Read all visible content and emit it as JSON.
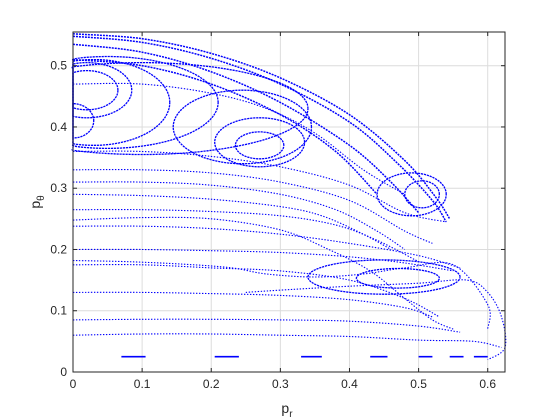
{
  "chart_data": {
    "type": "scatter",
    "title": "",
    "xlabel": {
      "base": "p",
      "sub": "r"
    },
    "ylabel": {
      "base": "p",
      "sub": "θ"
    },
    "xlim": [
      0,
      0.625
    ],
    "ylim": [
      0,
      0.555
    ],
    "xticks": [
      "0",
      "0.1",
      "0.2",
      "0.3",
      "0.4",
      "0.5",
      "0.6"
    ],
    "yticks": [
      "0",
      "0.1",
      "0.2",
      "0.3",
      "0.4",
      "0.5"
    ],
    "grid": true,
    "marker_color": "#0000ff",
    "series": [
      {
        "shape": "envelope",
        "points": [
          [
            0,
            0.552
          ],
          [
            0.1,
            0.544
          ],
          [
            0.2,
            0.52
          ],
          [
            0.3,
            0.48
          ],
          [
            0.4,
            0.42
          ],
          [
            0.48,
            0.345
          ],
          [
            0.525,
            0.285
          ],
          [
            0.545,
            0.25
          ]
        ]
      },
      {
        "shape": "envelope",
        "points": [
          [
            0,
            0.548
          ],
          [
            0.1,
            0.538
          ],
          [
            0.2,
            0.512
          ],
          [
            0.3,
            0.47
          ],
          [
            0.4,
            0.408
          ],
          [
            0.47,
            0.34
          ],
          [
            0.52,
            0.28
          ],
          [
            0.54,
            0.245
          ]
        ]
      },
      {
        "shape": "envelope",
        "points": [
          [
            0,
            0.535
          ],
          [
            0.1,
            0.522
          ],
          [
            0.2,
            0.49
          ],
          [
            0.3,
            0.44
          ],
          [
            0.4,
            0.37
          ],
          [
            0.46,
            0.31
          ],
          [
            0.5,
            0.26
          ]
        ]
      },
      {
        "shape": "envelope",
        "points": [
          [
            0,
            0.51
          ],
          [
            0.1,
            0.5
          ],
          [
            0.2,
            0.47
          ],
          [
            0.3,
            0.42
          ],
          [
            0.38,
            0.36
          ],
          [
            0.44,
            0.29
          ]
        ]
      },
      {
        "shape": "loop",
        "center": [
          0.02,
          0.46
        ],
        "radius": [
          0.045,
          0.032
        ]
      },
      {
        "shape": "loop",
        "center": [
          0.02,
          0.46
        ],
        "radius": [
          0.065,
          0.045
        ]
      },
      {
        "shape": "loop",
        "center": [
          0.0,
          0.41
        ],
        "radius": [
          0.03,
          0.028
        ]
      },
      {
        "shape": "loop",
        "center": [
          0.03,
          0.44
        ],
        "radius": [
          0.11,
          0.07
        ]
      },
      {
        "shape": "loop",
        "center": [
          0.05,
          0.44
        ],
        "radius": [
          0.16,
          0.075
        ]
      },
      {
        "shape": "loop",
        "center": [
          0.1,
          0.43
        ],
        "radius": [
          0.24,
          0.075
        ]
      },
      {
        "shape": "loop",
        "center": [
          0.27,
          0.37
        ],
        "radius": [
          0.035,
          0.022
        ]
      },
      {
        "shape": "loop",
        "center": [
          0.27,
          0.375
        ],
        "radius": [
          0.065,
          0.04
        ]
      },
      {
        "shape": "loop",
        "center": [
          0.245,
          0.4
        ],
        "radius": [
          0.1,
          0.06
        ]
      },
      {
        "shape": "loop",
        "center": [
          0.505,
          0.29
        ],
        "radius": [
          0.025,
          0.022
        ]
      },
      {
        "shape": "loop",
        "center": [
          0.49,
          0.29
        ],
        "radius": [
          0.05,
          0.035
        ]
      },
      {
        "shape": "loop",
        "center": [
          0.47,
          0.153
        ],
        "radius": [
          0.06,
          0.016
        ]
      },
      {
        "shape": "loop",
        "center": [
          0.45,
          0.155
        ],
        "radius": [
          0.11,
          0.028
        ]
      },
      {
        "shape": "curve",
        "points": [
          [
            0,
            0.47
          ],
          [
            0.1,
            0.47
          ],
          [
            0.2,
            0.455
          ],
          [
            0.28,
            0.43
          ],
          [
            0.35,
            0.39
          ],
          [
            0.42,
            0.33
          ],
          [
            0.48,
            0.29
          ]
        ]
      },
      {
        "shape": "curve",
        "points": [
          [
            0,
            0.36
          ],
          [
            0.1,
            0.36
          ],
          [
            0.2,
            0.352
          ],
          [
            0.3,
            0.335
          ],
          [
            0.4,
            0.305
          ],
          [
            0.48,
            0.26
          ],
          [
            0.54,
            0.245
          ]
        ]
      },
      {
        "shape": "curve",
        "points": [
          [
            0,
            0.33
          ],
          [
            0.1,
            0.33
          ],
          [
            0.2,
            0.325
          ],
          [
            0.3,
            0.31
          ],
          [
            0.4,
            0.28
          ],
          [
            0.48,
            0.23
          ],
          [
            0.52,
            0.21
          ]
        ]
      },
      {
        "shape": "curve",
        "points": [
          [
            0,
            0.31
          ],
          [
            0.1,
            0.31
          ],
          [
            0.2,
            0.305
          ],
          [
            0.3,
            0.29
          ],
          [
            0.38,
            0.265
          ],
          [
            0.44,
            0.23
          ],
          [
            0.48,
            0.2
          ]
        ]
      },
      {
        "shape": "curve",
        "points": [
          [
            0,
            0.29
          ],
          [
            0.1,
            0.288
          ],
          [
            0.2,
            0.282
          ],
          [
            0.3,
            0.27
          ],
          [
            0.36,
            0.255
          ],
          [
            0.42,
            0.225
          ],
          [
            0.46,
            0.2
          ]
        ]
      },
      {
        "shape": "curve",
        "points": [
          [
            0,
            0.265
          ],
          [
            0.1,
            0.265
          ],
          [
            0.2,
            0.262
          ],
          [
            0.3,
            0.255
          ],
          [
            0.38,
            0.24
          ],
          [
            0.44,
            0.215
          ],
          [
            0.5,
            0.18
          ]
        ]
      },
      {
        "shape": "curve",
        "points": [
          [
            0,
            0.248
          ],
          [
            0.1,
            0.252
          ],
          [
            0.2,
            0.25
          ],
          [
            0.3,
            0.232
          ],
          [
            0.37,
            0.2
          ],
          [
            0.43,
            0.165
          ],
          [
            0.48,
            0.12
          ],
          [
            0.52,
            0.085
          ],
          [
            0.55,
            0.07
          ]
        ]
      },
      {
        "shape": "curve",
        "points": [
          [
            0,
            0.238
          ],
          [
            0.1,
            0.238
          ],
          [
            0.2,
            0.234
          ],
          [
            0.3,
            0.225
          ],
          [
            0.4,
            0.21
          ],
          [
            0.5,
            0.19
          ],
          [
            0.56,
            0.17
          ]
        ]
      },
      {
        "shape": "curve",
        "points": [
          [
            0,
            0.2
          ],
          [
            0.1,
            0.2
          ],
          [
            0.2,
            0.198
          ],
          [
            0.3,
            0.195
          ],
          [
            0.4,
            0.188
          ],
          [
            0.48,
            0.178
          ],
          [
            0.55,
            0.165
          ]
        ]
      },
      {
        "shape": "curve",
        "points": [
          [
            0,
            0.182
          ],
          [
            0.08,
            0.18
          ],
          [
            0.16,
            0.176
          ],
          [
            0.23,
            0.17
          ],
          [
            0.28,
            0.16
          ],
          [
            0.35,
            0.155
          ],
          [
            0.42,
            0.16
          ],
          [
            0.48,
            0.17
          ],
          [
            0.55,
            0.175
          ],
          [
            0.6,
            0.11
          ],
          [
            0.6,
            0.07
          ]
        ]
      },
      {
        "shape": "curve",
        "points": [
          [
            0,
            0.175
          ],
          [
            0.1,
            0.175
          ],
          [
            0.2,
            0.17
          ],
          [
            0.3,
            0.165
          ],
          [
            0.4,
            0.15
          ],
          [
            0.48,
            0.12
          ],
          [
            0.53,
            0.09
          ]
        ]
      },
      {
        "shape": "curve",
        "points": [
          [
            0.25,
            0.13
          ],
          [
            0.32,
            0.135
          ],
          [
            0.4,
            0.14
          ],
          [
            0.5,
            0.145
          ],
          [
            0.57,
            0.15
          ],
          [
            0.6,
            0.13
          ],
          [
            0.62,
            0.09
          ],
          [
            0.625,
            0.04
          ],
          [
            0.6,
            0.02
          ]
        ]
      },
      {
        "shape": "curve",
        "points": [
          [
            0,
            0.13
          ],
          [
            0.1,
            0.13
          ],
          [
            0.2,
            0.128
          ],
          [
            0.3,
            0.125
          ],
          [
            0.4,
            0.118
          ],
          [
            0.48,
            0.105
          ],
          [
            0.52,
            0.09
          ]
        ]
      },
      {
        "shape": "curve",
        "points": [
          [
            0,
            0.085
          ],
          [
            0.1,
            0.086
          ],
          [
            0.2,
            0.086
          ],
          [
            0.3,
            0.085
          ],
          [
            0.4,
            0.083
          ],
          [
            0.5,
            0.075
          ],
          [
            0.56,
            0.065
          ]
        ]
      },
      {
        "shape": "curve",
        "points": [
          [
            0,
            0.06
          ],
          [
            0.1,
            0.062
          ],
          [
            0.2,
            0.062
          ],
          [
            0.3,
            0.06
          ],
          [
            0.4,
            0.058
          ],
          [
            0.5,
            0.052
          ],
          [
            0.58,
            0.05
          ],
          [
            0.62,
            0.04
          ]
        ]
      },
      {
        "shape": "dashes",
        "y": 0.025,
        "segments": [
          [
            0.07,
            0.105
          ],
          [
            0.205,
            0.24
          ],
          [
            0.33,
            0.36
          ],
          [
            0.43,
            0.455
          ],
          [
            0.5,
            0.52
          ],
          [
            0.545,
            0.565
          ],
          [
            0.58,
            0.6
          ]
        ]
      }
    ]
  }
}
